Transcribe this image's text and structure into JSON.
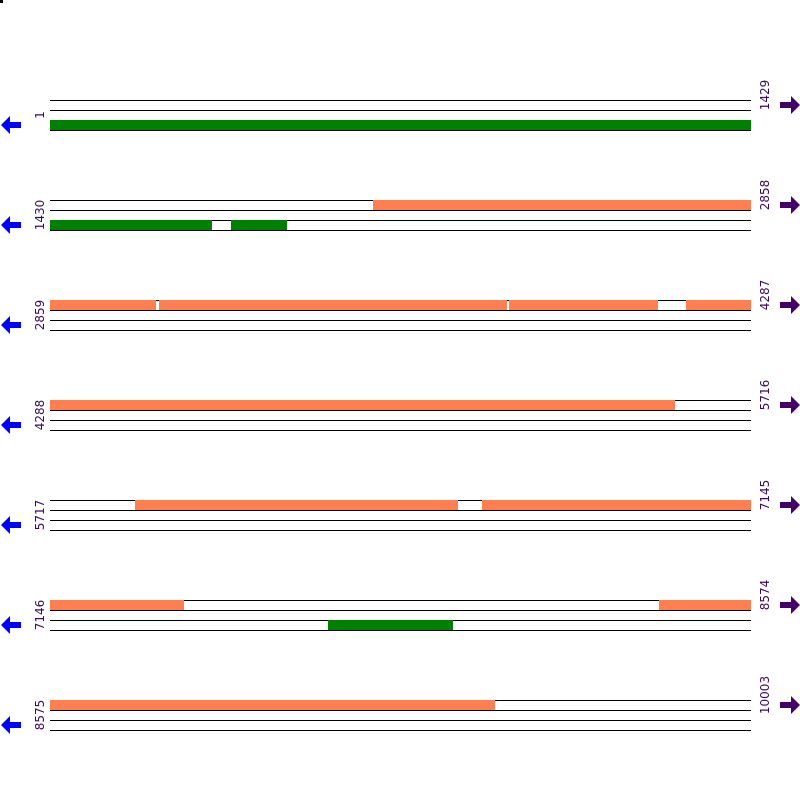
{
  "colors": {
    "forward": "#ff7f50",
    "reverse": "#008000",
    "line": "#000000",
    "left_arrow": "#0000ff",
    "right_arrow": "#440066",
    "number": "#3d0a5e"
  },
  "tracks": [
    {
      "start": "1",
      "end": "1429",
      "rows": [
        [],
        [],
        [
          [
            1,
            1429,
            "reverse"
          ]
        ],
        []
      ]
    },
    {
      "start": "1430",
      "end": "2858",
      "rows": [
        [
          [
            2089,
            2858,
            "forward"
          ]
        ],
        [],
        [
          [
            1430,
            1760,
            "reverse"
          ],
          [
            1799,
            1912,
            "reverse"
          ]
        ],
        []
      ]
    },
    {
      "start": "2859",
      "end": "4287",
      "rows": [
        [
          [
            2859,
            3074,
            "forward"
          ],
          [
            3082,
            3789,
            "forward"
          ],
          [
            3795,
            4098,
            "forward"
          ],
          [
            4155,
            4287,
            "forward"
          ]
        ],
        [],
        [],
        []
      ]
    },
    {
      "start": "4288",
      "end": "5716",
      "rows": [
        [
          [
            4288,
            5561,
            "forward"
          ]
        ],
        [],
        [],
        []
      ]
    },
    {
      "start": "5717",
      "end": "7145",
      "rows": [
        [
          [
            5891,
            6547,
            "forward"
          ],
          [
            6598,
            7145,
            "forward"
          ]
        ],
        [],
        [],
        []
      ]
    },
    {
      "start": "7146",
      "end": "8574",
      "rows": [
        [
          [
            7146,
            7418,
            "forward"
          ],
          [
            8387,
            8574,
            "forward"
          ]
        ],
        [],
        [
          [
            7712,
            7967,
            "reverse"
          ]
        ],
        []
      ]
    },
    {
      "start": "8575",
      "end": "10003",
      "rows": [
        [
          [
            8575,
            9481,
            "forward"
          ]
        ],
        [],
        [],
        []
      ]
    }
  ]
}
